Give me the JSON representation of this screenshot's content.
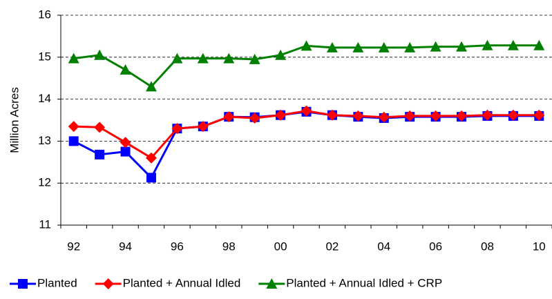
{
  "chart_data": {
    "type": "line",
    "y_label": "Million Acres",
    "categories": [
      "92",
      null,
      "94",
      null,
      "96",
      null,
      "98",
      null,
      "00",
      null,
      "02",
      null,
      "04",
      null,
      "06",
      null,
      "08",
      null,
      "10"
    ],
    "series": [
      {
        "name": "Planted",
        "color": "#0000ff",
        "marker": "square",
        "values": [
          13.0,
          12.68,
          12.75,
          12.13,
          13.3,
          13.35,
          13.58,
          13.57,
          13.62,
          13.7,
          13.62,
          13.58,
          13.55,
          13.58,
          13.58,
          13.58,
          13.6,
          13.6,
          13.6
        ]
      },
      {
        "name": "Planted + Annual Idled",
        "color": "#ff0000",
        "marker": "diamond",
        "values": [
          13.35,
          13.33,
          12.97,
          12.6,
          13.3,
          13.35,
          13.58,
          13.55,
          13.62,
          13.72,
          13.62,
          13.6,
          13.57,
          13.6,
          13.6,
          13.6,
          13.62,
          13.62,
          13.62
        ]
      },
      {
        "name": "Planted + Annual Idled + CRP",
        "color": "#008000",
        "marker": "triangle",
        "values": [
          14.97,
          15.05,
          14.7,
          14.3,
          14.97,
          14.97,
          14.97,
          14.95,
          15.05,
          15.27,
          15.23,
          15.23,
          15.23,
          15.23,
          15.25,
          15.25,
          15.28,
          15.28,
          15.28
        ]
      }
    ],
    "ylim": [
      11,
      16
    ],
    "yticks": [
      11,
      12,
      13,
      14,
      15,
      16
    ],
    "grid": true,
    "legend": "bottom"
  }
}
